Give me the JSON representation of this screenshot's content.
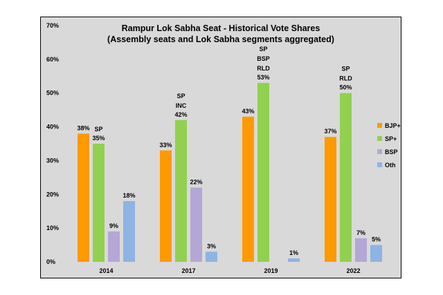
{
  "chart_data": {
    "type": "bar",
    "title": "Rampur Lok Sabha Seat - Historical Vote Shares",
    "subtitle": "(Assembly seats and Lok Sabha segments aggregated)",
    "categories": [
      "2014",
      "2017",
      "2019",
      "2022"
    ],
    "ylim": [
      0,
      70
    ],
    "yticks": [
      "0%",
      "10%",
      "20%",
      "30%",
      "40%",
      "50%",
      "60%",
      "70%"
    ],
    "grid": false,
    "legend_position": "right",
    "series": [
      {
        "name": "BJP+",
        "color": "#ff9900",
        "values": [
          38,
          33,
          43,
          37
        ],
        "labels": [
          "38%",
          "33%",
          "43%",
          "37%"
        ]
      },
      {
        "name": "SP+",
        "color": "#92d050",
        "values": [
          35,
          42,
          53,
          50
        ],
        "labels": [
          "35%",
          "42%",
          "53%",
          "50%"
        ]
      },
      {
        "name": "BSP",
        "color": "#b4a7d6",
        "values": [
          9,
          22,
          0,
          7
        ],
        "labels": [
          "9%",
          "22%",
          "",
          "7%"
        ]
      },
      {
        "name": "Oth",
        "color": "#8db4e2",
        "values": [
          18,
          3,
          1,
          5
        ],
        "labels": [
          "18%",
          "3%",
          "1%",
          "5%"
        ]
      }
    ],
    "annotations": [
      {
        "text": "SP",
        "category": "2014",
        "series": "SP+"
      },
      {
        "text": "SP\nINC",
        "category": "2017",
        "series": "SP+"
      },
      {
        "text": "SP\nBSP\nRLD",
        "category": "2019",
        "series": "SP+"
      },
      {
        "text": "SP\nRLD",
        "category": "2022",
        "series": "SP+"
      }
    ]
  }
}
